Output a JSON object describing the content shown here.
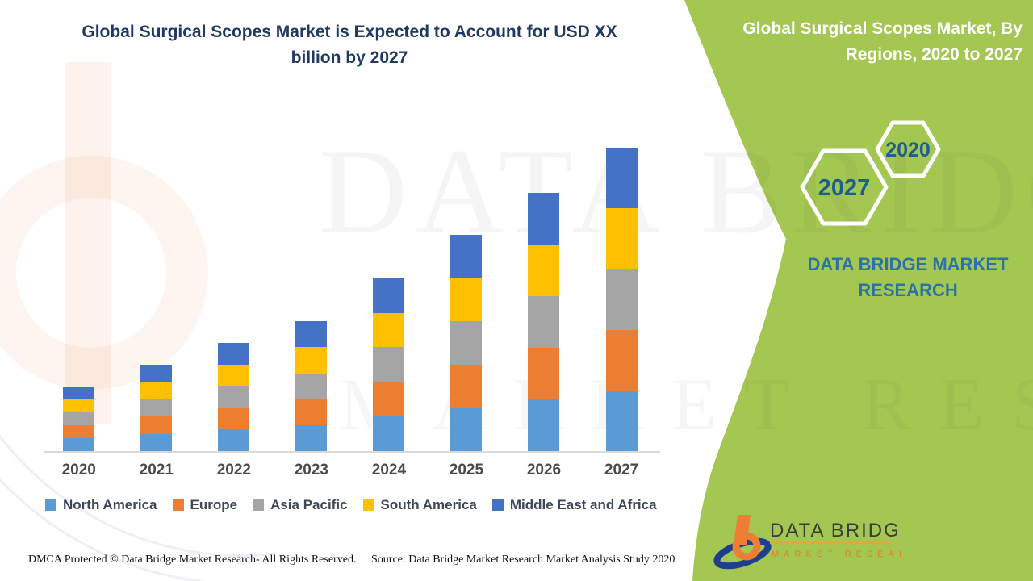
{
  "main_title": "Global Surgical Scopes Market is Expected to Account for USD XX billion by 2027",
  "side_panel": {
    "title": "Global Surgical Scopes Market, By Regions, 2020 to 2027",
    "hexagons": [
      {
        "year": "2020"
      },
      {
        "year": "2027"
      }
    ],
    "brand_text": "DATA BRIDGE MARKET RESEARCH"
  },
  "chart_data": {
    "type": "bar",
    "stacked": true,
    "title": "Global Surgical Scopes Market, By Regions, 2020 to 2027",
    "xlabel": "",
    "ylabel": "",
    "y_axis_labels_visible": false,
    "grid": false,
    "legend_position": "bottom",
    "values_note": "Market size is masked as 'USD XX billion'; values below are relative units estimated from bar heights (each year splits evenly across the five regions).",
    "categories": [
      "2020",
      "2021",
      "2022",
      "2023",
      "2024",
      "2025",
      "2026",
      "2027"
    ],
    "totals": [
      4.26,
      5.69,
      7.13,
      8.56,
      11.39,
      14.26,
      17.07,
      20.0
    ],
    "series": [
      {
        "name": "North America",
        "color": "#5B9BD5",
        "values": [
          0.85,
          1.14,
          1.43,
          1.71,
          2.28,
          2.85,
          3.41,
          4.0
        ]
      },
      {
        "name": "Europe",
        "color": "#ED7D31",
        "values": [
          0.85,
          1.14,
          1.43,
          1.71,
          2.28,
          2.85,
          3.41,
          4.0
        ]
      },
      {
        "name": "Asia Pacific",
        "color": "#A5A5A5",
        "values": [
          0.85,
          1.14,
          1.43,
          1.71,
          2.28,
          2.85,
          3.41,
          4.0
        ]
      },
      {
        "name": "South America",
        "color": "#FFC000",
        "values": [
          0.85,
          1.14,
          1.43,
          1.71,
          2.28,
          2.85,
          3.41,
          4.0
        ]
      },
      {
        "name": "Middle East and Africa",
        "color": "#4472C4",
        "values": [
          0.85,
          1.14,
          1.43,
          1.71,
          2.28,
          2.85,
          3.41,
          4.0
        ]
      }
    ]
  },
  "watermark": {
    "line1": "DATA BRIDGE",
    "line2": "MARKET RESEARCH"
  },
  "footer": {
    "dmca": "DMCA Protected © Data Bridge Market Research- All Rights Reserved.",
    "source": "Source: Data Bridge Market Research Market Analysis Study 2020"
  },
  "footer_logo": {
    "line1": "DATA BRIDGE",
    "line2": "MARKET RESEARCH"
  },
  "colors": {
    "panel_green": "#a3c751",
    "title_navy": "#1f3864",
    "brand_blue": "#2d72a5",
    "hex_year_blue": "#1d5f8c",
    "axis_line": "#d9d9d9",
    "x_label": "#4a4a4a",
    "legend_text": "#3d4757"
  }
}
